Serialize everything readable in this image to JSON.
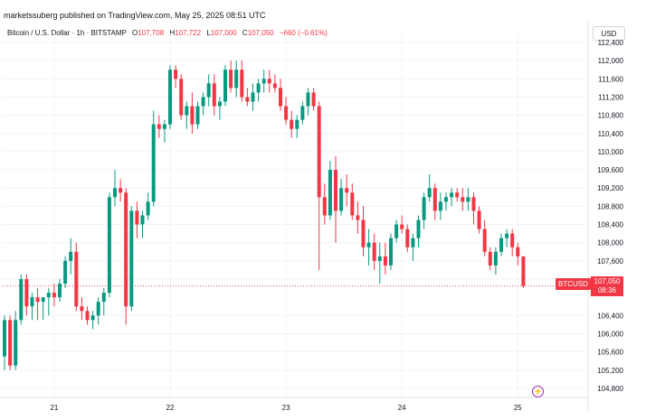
{
  "header": {
    "credit": "marketssuberg published on TradingView.com, May 25, 2025 08:51 UTC"
  },
  "legend": {
    "symbol": "Bitcoin / U.S. Dollar · 1h · BITSTAMP",
    "open_label": "O",
    "open": "107,708",
    "high_label": "H",
    "high": "107,722",
    "low_label": "L",
    "low": "107,000",
    "close_label": "C",
    "close": "107,050",
    "change": "−660 (−0.61%)"
  },
  "currency": "USD",
  "last_price": {
    "symbol": "BTCUSD",
    "price": "107,050",
    "countdown": "08:36"
  },
  "colors": {
    "up": "#089981",
    "down": "#f23645",
    "grid": "#f0f3fa",
    "axis_text": "#131722"
  },
  "icons": {
    "logo": "tradingview-badge-icon"
  },
  "chart_data": {
    "type": "candlestick",
    "title": "",
    "xlabel": "",
    "ylabel": "",
    "ylim": [
      104600,
      112400
    ],
    "grid": true,
    "y_ticks": [
      {
        "value": 112400,
        "label": "112,400"
      },
      {
        "value": 112000,
        "label": "112,000"
      },
      {
        "value": 111600,
        "label": "111,600"
      },
      {
        "value": 111200,
        "label": "111,200"
      },
      {
        "value": 110800,
        "label": "110,800"
      },
      {
        "value": 110400,
        "label": "110,400"
      },
      {
        "value": 110000,
        "label": "110,000"
      },
      {
        "value": 109600,
        "label": "109,600"
      },
      {
        "value": 109200,
        "label": "109,200"
      },
      {
        "value": 108800,
        "label": "108,800"
      },
      {
        "value": 108400,
        "label": "108,400"
      },
      {
        "value": 108000,
        "label": "108,000"
      },
      {
        "value": 107600,
        "label": "107,600"
      },
      {
        "value": 107200,
        "label": "107,200"
      },
      {
        "value": 106400,
        "label": "106,400"
      },
      {
        "value": 106000,
        "label": "106,000"
      },
      {
        "value": 105600,
        "label": "105,600"
      },
      {
        "value": 105200,
        "label": "105,200"
      },
      {
        "value": 104800,
        "label": "104,800"
      }
    ],
    "x_ticks": [
      {
        "index": 9,
        "label": "21"
      },
      {
        "index": 30,
        "label": "22"
      },
      {
        "index": 51,
        "label": "23"
      },
      {
        "index": 72,
        "label": "24"
      },
      {
        "index": 93,
        "label": "25"
      }
    ],
    "last_close": 107050,
    "candles": [
      [
        105500,
        106400,
        105200,
        106300
      ],
      [
        106300,
        106400,
        105200,
        105300
      ],
      [
        105300,
        106500,
        105200,
        106300
      ],
      [
        106300,
        107300,
        106200,
        107200
      ],
      [
        107200,
        107300,
        106400,
        106600
      ],
      [
        106600,
        106900,
        106300,
        106800
      ],
      [
        106800,
        107000,
        106300,
        106700
      ],
      [
        106700,
        106800,
        106300,
        106800
      ],
      [
        106800,
        107000,
        106400,
        106900
      ],
      [
        106900,
        107100,
        106600,
        106800
      ],
      [
        106800,
        107200,
        106700,
        107100
      ],
      [
        107100,
        107700,
        107000,
        107600
      ],
      [
        107600,
        108100,
        107300,
        107800
      ],
      [
        107800,
        108000,
        106500,
        106600
      ],
      [
        106600,
        106800,
        106300,
        106500
      ],
      [
        106500,
        106600,
        106200,
        106300
      ],
      [
        106300,
        106500,
        106100,
        106400
      ],
      [
        106400,
        106800,
        106200,
        106700
      ],
      [
        106700,
        107000,
        106400,
        106900
      ],
      [
        106900,
        109100,
        106800,
        109000
      ],
      [
        109000,
        109600,
        108800,
        109200
      ],
      [
        109200,
        109400,
        108900,
        109100
      ],
      [
        109100,
        109200,
        106200,
        106600
      ],
      [
        106600,
        108800,
        106500,
        108700
      ],
      [
        108700,
        108900,
        108100,
        108400
      ],
      [
        108400,
        108700,
        108100,
        108600
      ],
      [
        108600,
        109100,
        108500,
        108900
      ],
      [
        108900,
        110900,
        108800,
        110600
      ],
      [
        110600,
        110800,
        110300,
        110500
      ],
      [
        110500,
        110700,
        110200,
        110600
      ],
      [
        110600,
        111900,
        110500,
        111800
      ],
      [
        111800,
        111900,
        111400,
        111600
      ],
      [
        111600,
        111700,
        110700,
        110800
      ],
      [
        110800,
        111100,
        110500,
        111000
      ],
      [
        111000,
        111300,
        110400,
        110600
      ],
      [
        110600,
        111100,
        110500,
        111000
      ],
      [
        111000,
        111300,
        110800,
        111200
      ],
      [
        111200,
        111700,
        111000,
        111500
      ],
      [
        111500,
        111700,
        110800,
        111000
      ],
      [
        111000,
        111200,
        110700,
        111100
      ],
      [
        111100,
        111900,
        111000,
        111800
      ],
      [
        111800,
        112000,
        111300,
        111400
      ],
      [
        111400,
        112000,
        111200,
        111800
      ],
      [
        111800,
        112000,
        111100,
        111200
      ],
      [
        111200,
        111400,
        111000,
        111100
      ],
      [
        111100,
        111500,
        110900,
        111300
      ],
      [
        111300,
        111600,
        111100,
        111500
      ],
      [
        111500,
        111800,
        111300,
        111600
      ],
      [
        111600,
        111800,
        111300,
        111500
      ],
      [
        111500,
        111700,
        111300,
        111400
      ],
      [
        111400,
        111600,
        110900,
        111000
      ],
      [
        111000,
        111200,
        110600,
        110700
      ],
      [
        110700,
        110900,
        110300,
        110500
      ],
      [
        110500,
        110800,
        110300,
        110700
      ],
      [
        110700,
        111100,
        110600,
        111000
      ],
      [
        111000,
        111400,
        110800,
        111300
      ],
      [
        111300,
        111400,
        110900,
        111000
      ],
      [
        111000,
        111100,
        107400,
        109000
      ],
      [
        109000,
        109300,
        108400,
        108600
      ],
      [
        108600,
        109800,
        108500,
        109600
      ],
      [
        109600,
        109900,
        108000,
        108700
      ],
      [
        108700,
        109400,
        108600,
        109200
      ],
      [
        109200,
        109500,
        108800,
        109100
      ],
      [
        109100,
        109300,
        108500,
        108600
      ],
      [
        108600,
        108900,
        108200,
        108500
      ],
      [
        108500,
        108800,
        107700,
        107900
      ],
      [
        107900,
        108300,
        107500,
        108000
      ],
      [
        108000,
        108200,
        107400,
        107600
      ],
      [
        107600,
        108000,
        107100,
        107700
      ],
      [
        107700,
        108000,
        107300,
        107500
      ],
      [
        107500,
        108200,
        107400,
        108100
      ],
      [
        108100,
        108500,
        108000,
        108400
      ],
      [
        108400,
        108600,
        108200,
        108300
      ],
      [
        108300,
        108400,
        107800,
        107900
      ],
      [
        107900,
        108200,
        107600,
        108100
      ],
      [
        108100,
        108600,
        107900,
        108500
      ],
      [
        108500,
        109100,
        108300,
        109000
      ],
      [
        109000,
        109500,
        108900,
        109200
      ],
      [
        109200,
        109300,
        108500,
        108700
      ],
      [
        108700,
        109100,
        108500,
        108900
      ],
      [
        108900,
        109100,
        108700,
        109000
      ],
      [
        109000,
        109200,
        108800,
        109100
      ],
      [
        109100,
        109200,
        108900,
        109000
      ],
      [
        109000,
        109200,
        108700,
        108900
      ],
      [
        108900,
        109200,
        108700,
        109000
      ],
      [
        109000,
        109100,
        108400,
        108700
      ],
      [
        108700,
        108800,
        108200,
        108300
      ],
      [
        108300,
        108500,
        107700,
        107800
      ],
      [
        107800,
        107900,
        107400,
        107500
      ],
      [
        107500,
        107900,
        107300,
        107800
      ],
      [
        107800,
        108200,
        107700,
        108100
      ],
      [
        108100,
        108300,
        107900,
        108200
      ],
      [
        108200,
        108300,
        107700,
        107900
      ],
      [
        107900,
        108000,
        107500,
        107700
      ],
      [
        107700,
        107700,
        107000,
        107050
      ]
    ]
  }
}
